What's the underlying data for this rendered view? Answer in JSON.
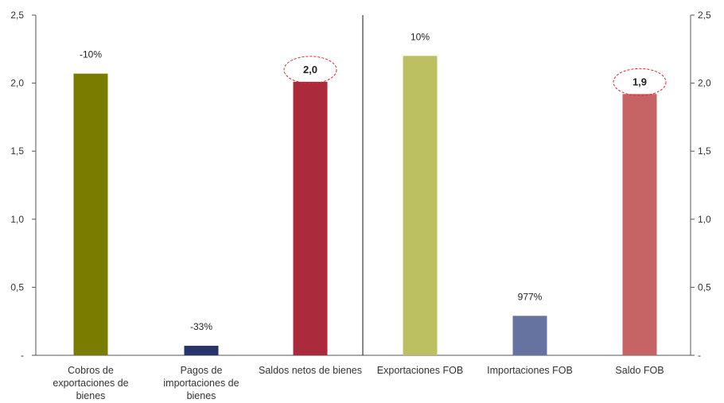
{
  "chart_data": {
    "type": "bar",
    "ylim": [
      0,
      2.5
    ],
    "y_ticks": [
      "-",
      "0,5",
      "1,0",
      "1,5",
      "2,0",
      "2,5"
    ],
    "right_axis_ticks": [
      "-",
      "0,5",
      "1,0",
      "1,5",
      "2,0",
      "2,5"
    ],
    "grid": false,
    "categories": [
      [
        "Cobros de",
        "exportaciones de",
        "bienes"
      ],
      [
        "Pagos de",
        "importaciones de",
        "bienes"
      ],
      [
        "Saldos netos de bienes"
      ],
      [
        "Exportaciones FOB"
      ],
      [
        "Importaciones FOB"
      ],
      [
        "Saldo FOB"
      ]
    ],
    "values": [
      2.07,
      0.07,
      2.01,
      2.2,
      0.29,
      1.92
    ],
    "data_labels": [
      "-10%",
      "-33%",
      "2,0",
      "10%",
      "977%",
      "1,9"
    ],
    "highlighted_labels": [
      false,
      false,
      true,
      false,
      false,
      true
    ],
    "colors": [
      "#7a7c00",
      "#263469",
      "#ab2b3c",
      "#bcc060",
      "#66729f",
      "#c66365"
    ],
    "highlight_color": "#e8252c",
    "divider_after_index": 2
  }
}
